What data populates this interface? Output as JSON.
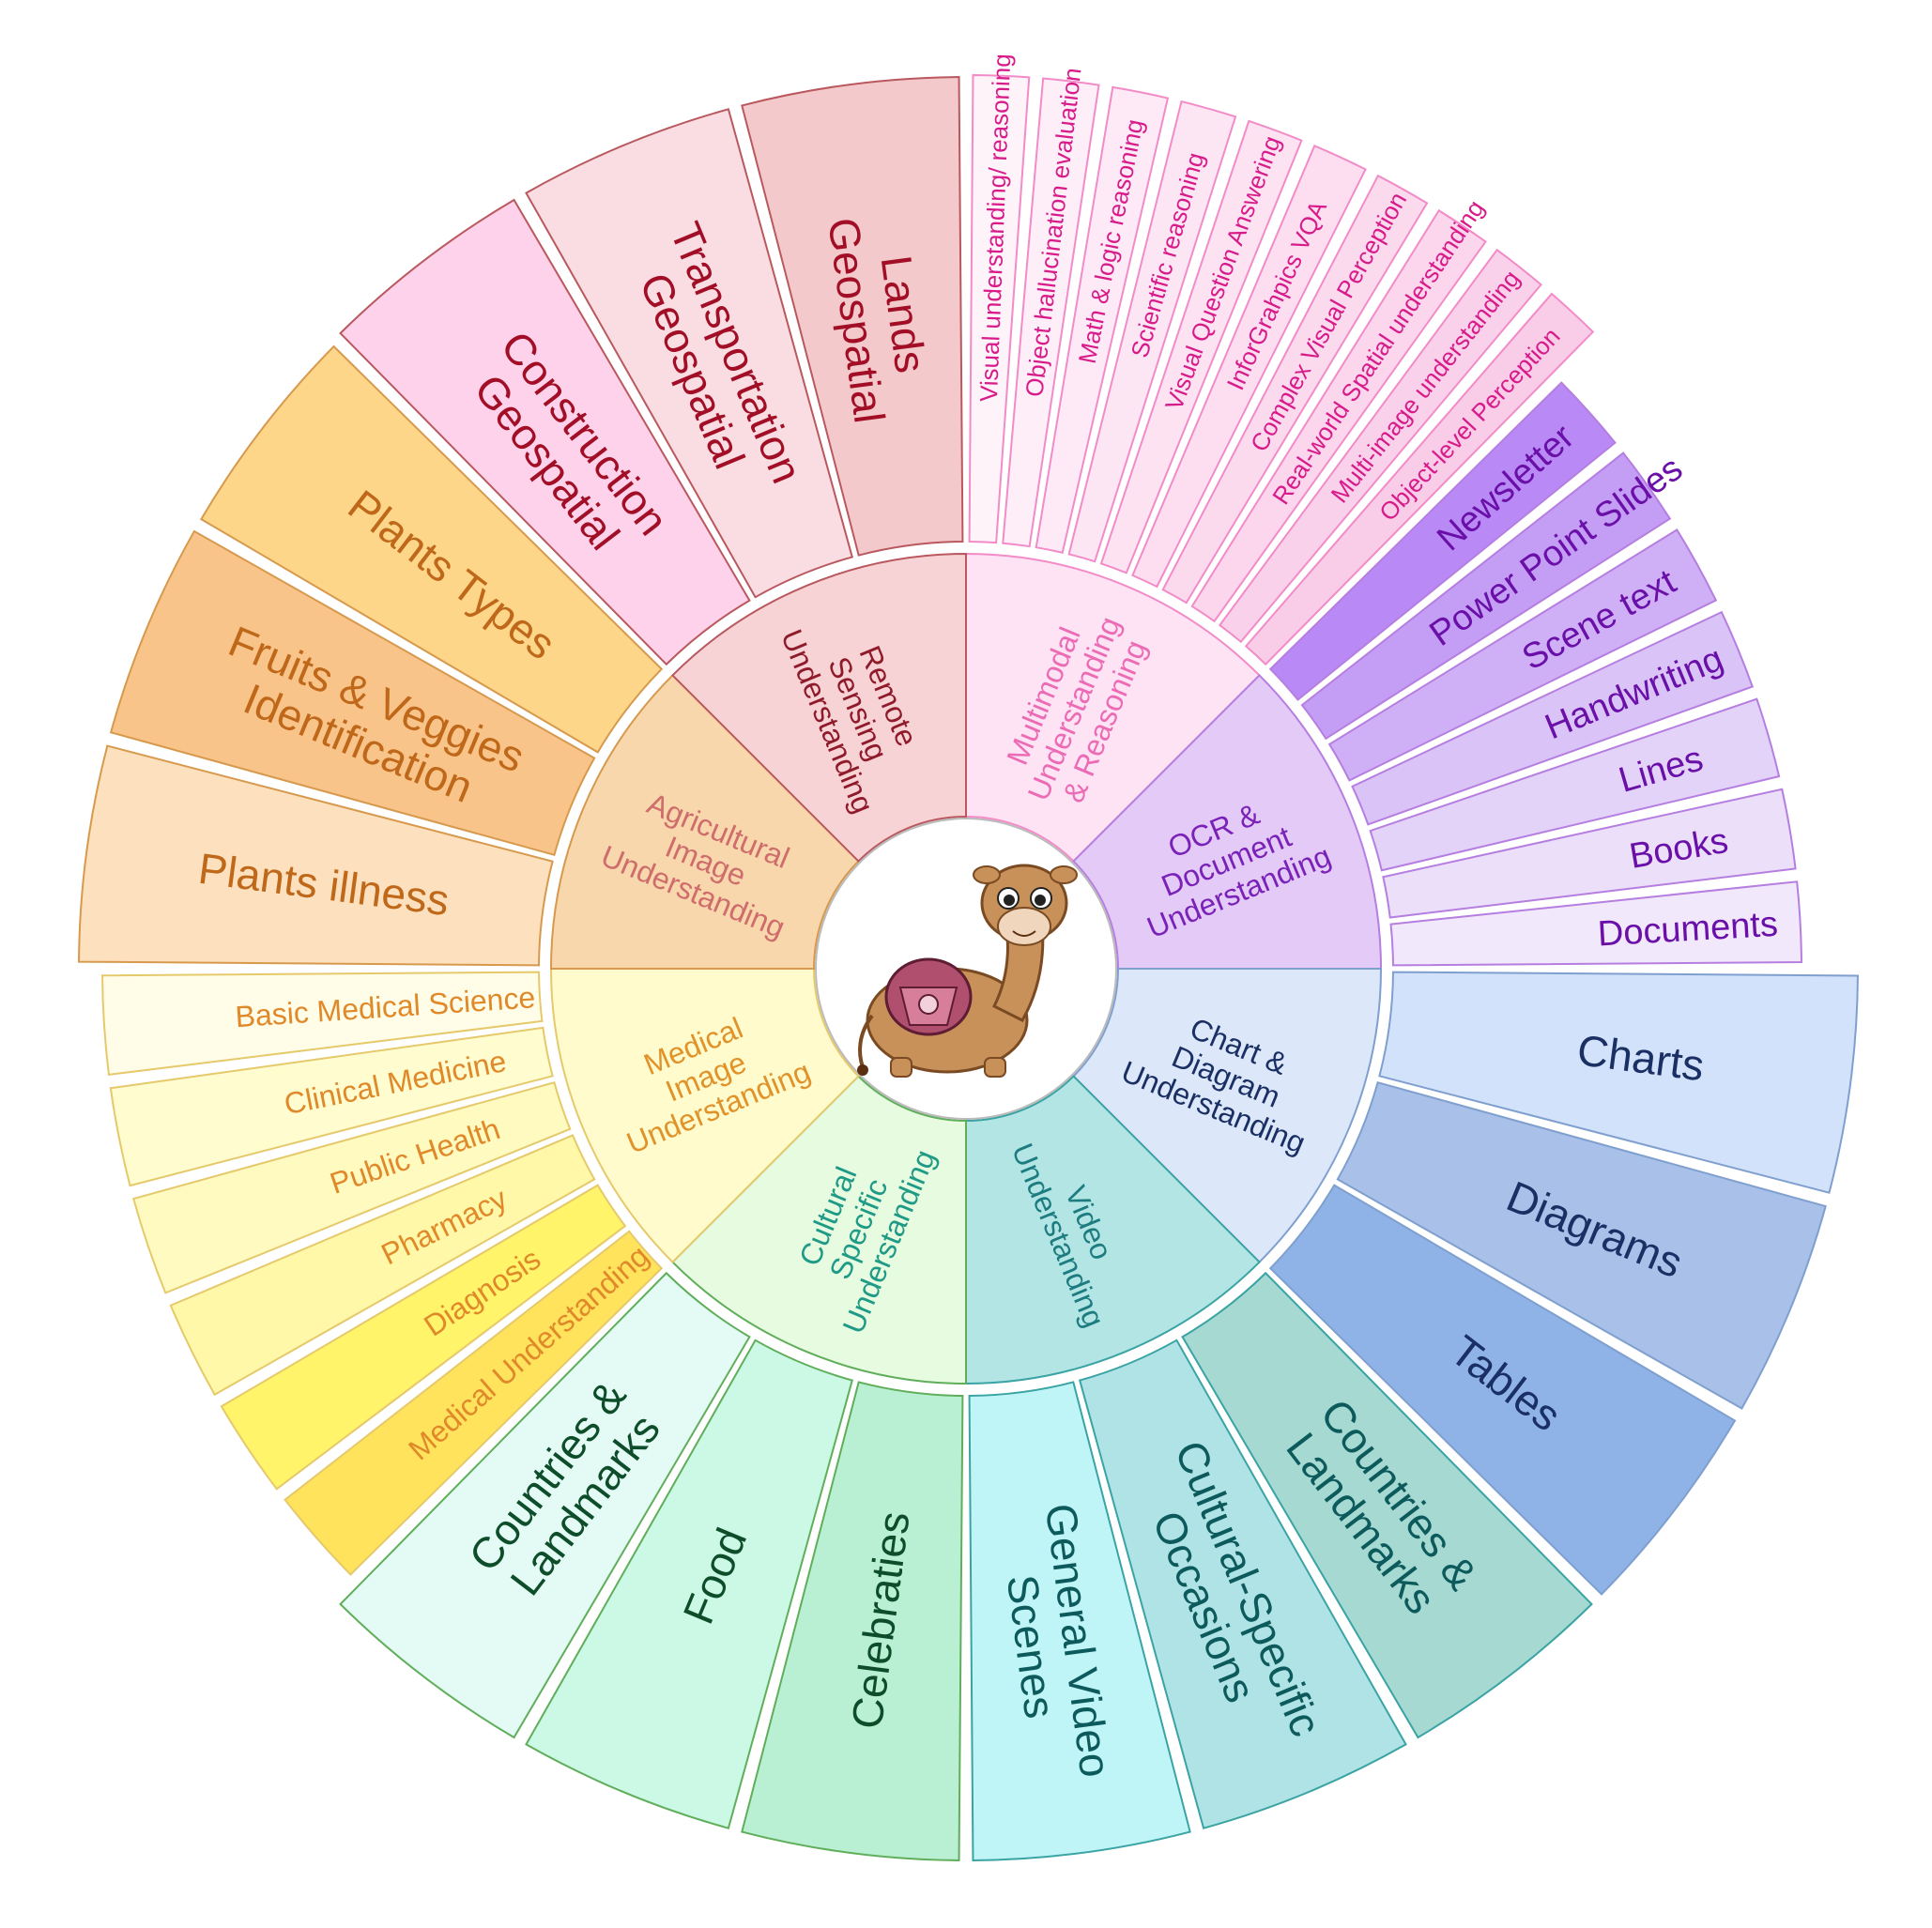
{
  "categories": [
    {
      "label": "Multimodal\nUnderstanding\n& Reasoning",
      "fill": "#fde3f3",
      "stroke": "#f28bc8",
      "text_color": "#ec6bb5",
      "outer_text_color": "#d81b8a",
      "span": [
        0,
        45
      ],
      "subs": [
        {
          "label": "Visual understanding/ reasoning",
          "fill": "#fff3fa"
        },
        {
          "label": "Object hallucination evaluation",
          "fill": "#feeef8"
        },
        {
          "label": "Math & logic reasoning",
          "fill": "#fdeaf6"
        },
        {
          "label": "Scientific reasoning",
          "fill": "#fde6f4"
        },
        {
          "label": "Visual Question Answering",
          "fill": "#fde2f2"
        },
        {
          "label": "InforGrahpics VQA",
          "fill": "#fcdef0"
        },
        {
          "label": "Complex Visual Perception",
          "fill": "#fcdaee"
        },
        {
          "label": "Real-world Spatial understanding",
          "fill": "#fbd6ec"
        },
        {
          "label": "Multi-image understanding",
          "fill": "#fad1ea"
        },
        {
          "label": "Object-level Perception",
          "fill": "#f9cce8"
        }
      ]
    },
    {
      "label": "OCR &\nDocument\nUnderstanding",
      "fill": "#e4caf7",
      "stroke": "#b57ee0",
      "text_color": "#7a22b8",
      "outer_text_color": "#6a0fa8",
      "span": [
        45,
        90
      ],
      "subs": [
        {
          "label": "Newsletter",
          "fill": "#b98af5"
        },
        {
          "label": "Power Point Slides",
          "fill": "#c49df5"
        },
        {
          "label": "Scene text",
          "fill": "#cfb0f6"
        },
        {
          "label": "Handwriting",
          "fill": "#dac4f7"
        },
        {
          "label": "Lines",
          "fill": "#e3d3f8"
        },
        {
          "label": "Books",
          "fill": "#ebdffa"
        },
        {
          "label": "Documents",
          "fill": "#f1e8fb"
        }
      ]
    },
    {
      "label": "Chart &\nDiagram\nUnderstanding",
      "fill": "#dce8fa",
      "stroke": "#7f9fcf",
      "text_color": "#1a2f63",
      "outer_text_color": "#1a2f63",
      "span": [
        90,
        135
      ],
      "subs": [
        {
          "label": "Charts",
          "fill": "#d2e2fa"
        },
        {
          "label": "Diagrams",
          "fill": "#a9c1e9"
        },
        {
          "label": "Tables",
          "fill": "#8fb3e6"
        }
      ]
    },
    {
      "label": "Video\nUnderstanding",
      "fill": "#b3e5e5",
      "stroke": "#3aa3a3",
      "text_color": "#1d7c80",
      "outer_text_color": "#0d5a5c",
      "span": [
        135,
        180
      ],
      "subs": [
        {
          "label": "General Video\nScenes",
          "fill": "#c0f5f8"
        },
        {
          "label": "Cultural-Specific\nOccasions",
          "fill": "#b0e3e6"
        },
        {
          "label": "Countries &\nLandmarks",
          "fill": "#a5d9d2"
        }
      ]
    },
    {
      "label": "Cultural\nSpecific\nUnderstanding",
      "fill": "#e6fbdf",
      "stroke": "#5fae5a",
      "text_color": "#1e9a86",
      "outer_text_color": "#0d4d2a",
      "span": [
        180,
        225
      ],
      "subs": [
        {
          "label": "Countries &\nLandmarks",
          "fill": "#e4faf4"
        },
        {
          "label": "Food",
          "fill": "#ccf8e6"
        },
        {
          "label": "Celebraties",
          "fill": "#b9f0d3"
        }
      ]
    },
    {
      "label": "Medical\nImage\nUnderstanding",
      "fill": "#fffbcd",
      "stroke": "#e5c96b",
      "text_color": "#e0932a",
      "outer_text_color": "#e0892a",
      "span": [
        225,
        270
      ],
      "subs": [
        {
          "label": "Basic Medical Science",
          "fill": "#fffde7"
        },
        {
          "label": "Clinical Medicine",
          "fill": "#fffccf"
        },
        {
          "label": "Public Health",
          "fill": "#fffabf"
        },
        {
          "label": "Pharmacy",
          "fill": "#fff8a8"
        },
        {
          "label": "Diagnosis",
          "fill": "#fff46a"
        },
        {
          "label": "Medical Understanding",
          "fill": "#ffe35c"
        }
      ]
    },
    {
      "label": "Agricultural\nImage\nUnderstanding",
      "fill": "#f8d7ad",
      "stroke": "#d6994d",
      "text_color": "#cf6c6c",
      "outer_text_color": "#c0681a",
      "span": [
        270,
        315
      ],
      "subs": [
        {
          "label": "Plants Types",
          "fill": "#fdd68a"
        },
        {
          "label": "Fruits & Veggies\nIdentification",
          "fill": "#f8c48a"
        },
        {
          "label": "Plants illness",
          "fill": "#fde0bd"
        }
      ]
    },
    {
      "label": "Remote\nSensing\nUnderstanding",
      "fill": "#f7d3d6",
      "stroke": "#b9585e",
      "text_color": "#8f1a2a",
      "outer_text_color": "#a10e26",
      "span": [
        315,
        360
      ],
      "subs": [
        {
          "label": "Lands\nGeospatial",
          "fill": "#f4c9cb"
        },
        {
          "label": "Transportation\nGeospatial",
          "fill": "#f9dde2"
        },
        {
          "label": "Construction\nGeospatial",
          "fill": "#fdd2ea"
        }
      ]
    }
  ],
  "center_icon": "camel-mascot-icon"
}
